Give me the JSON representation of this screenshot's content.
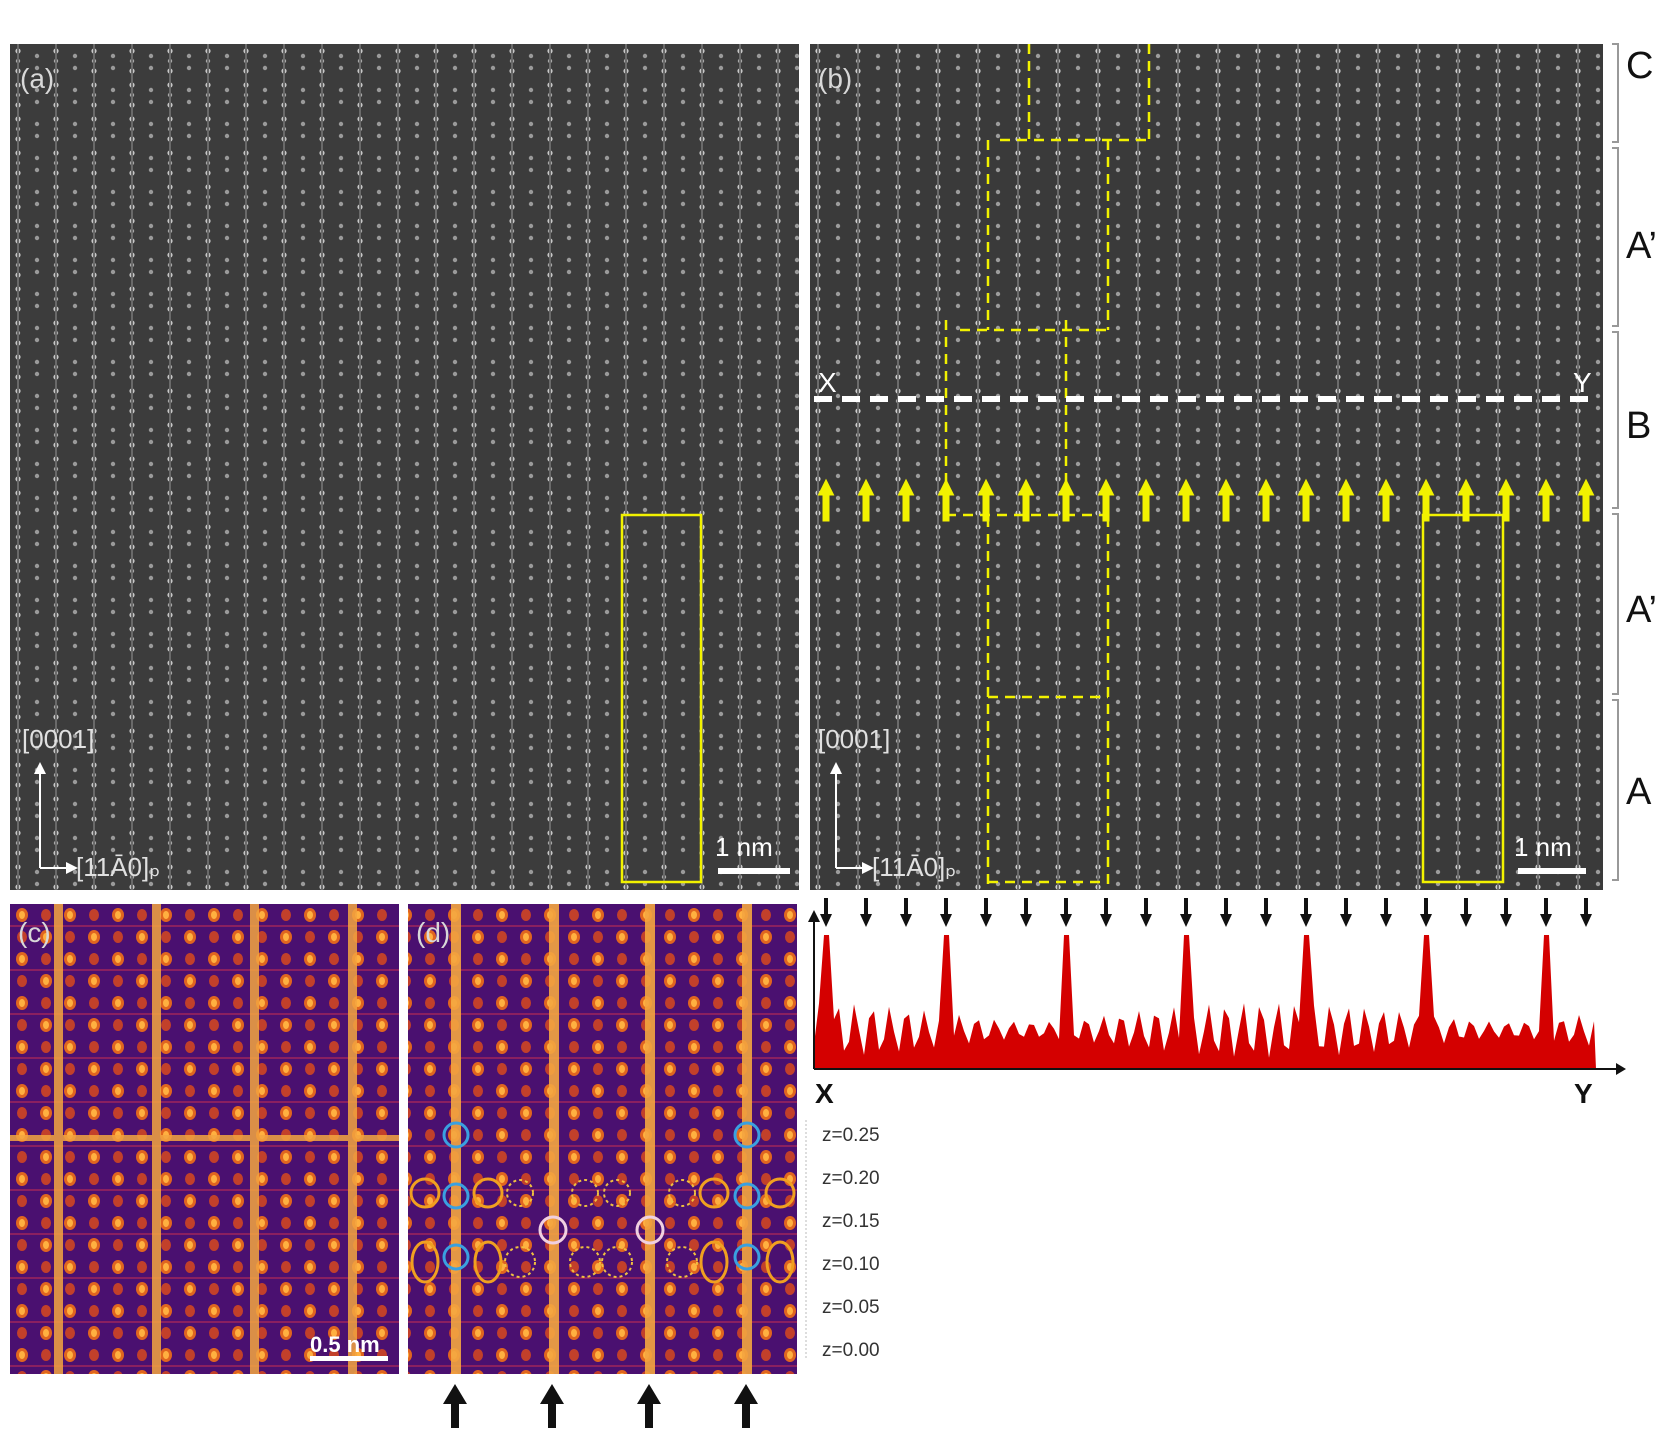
{
  "panels": {
    "a": {
      "label": "(a)",
      "axis_up": "[0001]",
      "axis_right": "[11Ā0]ₚ",
      "scale": "1 nm"
    },
    "b": {
      "label": "(b)",
      "axis_up": "[0001]",
      "axis_right": "[11Ā0]ₚ",
      "scale": "1 nm",
      "line_start": "X",
      "line_end": "Y"
    },
    "c": {
      "label": "(c)",
      "scale": "0.5 nm"
    },
    "d": {
      "label": "(d)"
    }
  },
  "stacking_labels": [
    "C",
    "A’",
    "B",
    "A’",
    "A"
  ],
  "profile": {
    "x_label": "X",
    "y_label": "Y"
  },
  "z_levels": [
    "z=0.25",
    "z=0.20",
    "z=0.15",
    "z=0.10",
    "z=0.05",
    "z=0.00"
  ],
  "colors": {
    "highlight": "#f2f200",
    "profile": "#d40000",
    "circle_orange": "#f0a020",
    "circle_blue": "#3aa0e0"
  }
}
